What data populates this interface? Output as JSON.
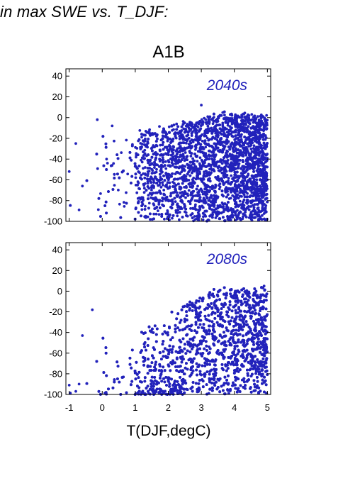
{
  "page": {
    "heading": "in max SWE vs. T_DJF:"
  },
  "chart_data": {
    "type": "scatter",
    "title": "A1B",
    "xlabel": "T(DJF,degC)",
    "ylabel": "",
    "marker_color": "#2222bb",
    "grid": false,
    "xlim": [
      -1.1,
      5.1
    ],
    "ylim": [
      -100,
      47
    ],
    "xticks": [
      "-1",
      "0",
      "1",
      "2",
      "3",
      "4",
      "5"
    ],
    "yticks": [
      "40",
      "20",
      "0",
      "-20",
      "-40",
      "-60",
      "-80",
      "-100"
    ],
    "panels": [
      {
        "annotation": "2040s",
        "cloud": {
          "description": "dense blue point cloud",
          "x_range": [
            -1.0,
            5.0
          ],
          "y_range": [
            -100,
            12
          ],
          "dense_core": {
            "x_from": 2.3,
            "upper_edge_at_x": [
              [
                1.0,
                -15
              ],
              [
                2.0,
                -8
              ],
              [
                3.0,
                -2
              ],
              [
                3.7,
                5
              ],
              [
                4.3,
                3
              ],
              [
                5.0,
                2
              ]
            ]
          }
        },
        "notable_points": [
          {
            "x": -1.0,
            "y": -52
          },
          {
            "x": -0.8,
            "y": -25
          },
          {
            "x": -0.7,
            "y": -89
          },
          {
            "x": -0.6,
            "y": -66
          },
          {
            "x": -0.15,
            "y": -2
          },
          {
            "x": 0.3,
            "y": -8
          },
          {
            "x": 3.0,
            "y": 12
          }
        ]
      },
      {
        "annotation": "2080s",
        "cloud": {
          "description": "dense blue point cloud",
          "x_range": [
            -1.0,
            5.0
          ],
          "y_range": [
            -100,
            7
          ],
          "dense_core": {
            "x_from": 2.5,
            "upper_edge_at_x": [
              [
                1.0,
                -40
              ],
              [
                2.0,
                -20
              ],
              [
                3.0,
                -5
              ],
              [
                3.6,
                3
              ],
              [
                4.3,
                2
              ],
              [
                5.0,
                5
              ]
            ]
          }
        },
        "notable_points": [
          {
            "x": -1.0,
            "y": -91
          },
          {
            "x": -0.8,
            "y": -97
          },
          {
            "x": -0.7,
            "y": -90
          },
          {
            "x": -0.3,
            "y": -18
          },
          {
            "x": -0.6,
            "y": -43
          },
          {
            "x": 4.9,
            "y": 5
          }
        ]
      }
    ]
  }
}
